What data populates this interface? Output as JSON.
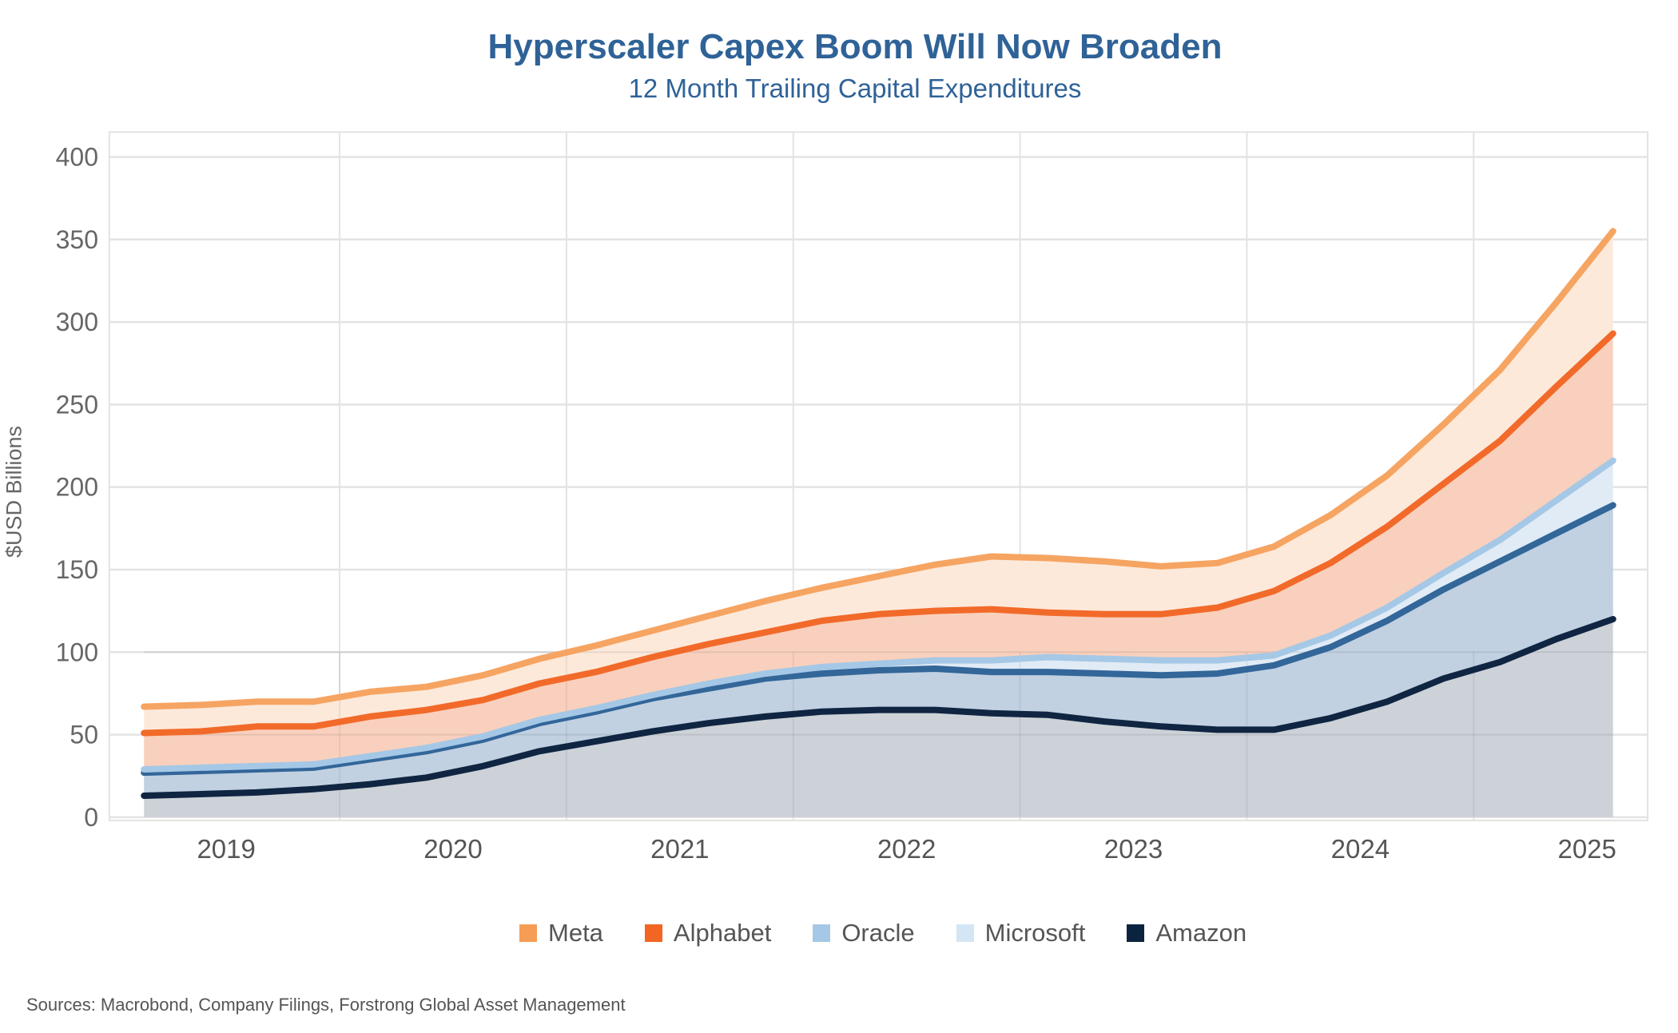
{
  "header": {
    "title": "Hyperscaler Capex Boom Will Now Broaden",
    "subtitle": "12 Month Trailing Capital Expenditures"
  },
  "footer": {
    "source": "Sources: Macrobond, Company Filings, Forstrong Global Asset Management"
  },
  "chart_data": {
    "type": "area",
    "stacked": true,
    "title": "Hyperscaler Capex Boom Will Now Broaden",
    "subtitle": "12 Month Trailing Capital Expenditures",
    "xlabel": "",
    "ylabel": "$USD Billions",
    "ylim": [
      0,
      400
    ],
    "yticks": [
      0,
      50,
      100,
      150,
      200,
      250,
      300,
      350,
      400
    ],
    "xtick_labels": [
      "2019",
      "2020",
      "2021",
      "2022",
      "2023",
      "2024",
      "2025"
    ],
    "x_start": 2018.625,
    "x_step": 0.25,
    "grid": true,
    "legend_position": "bottom",
    "note": "Series values are cumulative stacked totals (top edge of each band) read from the chart.",
    "series": [
      {
        "name": "Meta",
        "color": "#f4a261",
        "line_color": "#f6a462",
        "fill": "#fde9da",
        "values": [
          67,
          68,
          70,
          70,
          76,
          79,
          86,
          96,
          104,
          113,
          122,
          131,
          139,
          146,
          153,
          158,
          157,
          155,
          152,
          154,
          164,
          183,
          207,
          238,
          271,
          312,
          355
        ]
      },
      {
        "name": "Alphabet",
        "color": "#f26522",
        "line_color": "#f26a2a",
        "fill": "#f9d0bd",
        "values": [
          51,
          52,
          55,
          55,
          61,
          65,
          71,
          81,
          88,
          97,
          105,
          112,
          119,
          123,
          125,
          126,
          124,
          123,
          123,
          127,
          137,
          154,
          176,
          202,
          228,
          261,
          293
        ]
      },
      {
        "name": "Oracle",
        "color": "#a5c8e6",
        "line_color": "#a5c8e6",
        "fill": "#e1ebf5",
        "values": [
          29,
          30,
          31,
          32,
          37,
          42,
          49,
          59,
          66,
          74,
          81,
          87,
          91,
          93,
          95,
          95,
          97,
          96,
          95,
          95,
          98,
          110,
          127,
          148,
          168,
          192,
          216
        ]
      },
      {
        "name": "Microsoft",
        "color": "#d4e6f4",
        "line_color": "#336699",
        "fill": "#c1d1e1",
        "values": [
          27,
          28,
          29,
          30,
          35,
          40,
          47,
          57,
          64,
          72,
          78,
          84,
          87,
          89,
          90,
          88,
          88,
          87,
          86,
          87,
          92,
          103,
          119,
          138,
          155,
          172,
          189
        ]
      },
      {
        "name": "Amazon",
        "color": "#0c2340",
        "line_color": "#0f2542",
        "fill": "#cdd2d8",
        "values": [
          13,
          14,
          15,
          17,
          20,
          24,
          31,
          40,
          46,
          52,
          57,
          61,
          64,
          65,
          65,
          63,
          62,
          58,
          55,
          53,
          53,
          60,
          70,
          84,
          94,
          108,
          120
        ]
      }
    ]
  }
}
